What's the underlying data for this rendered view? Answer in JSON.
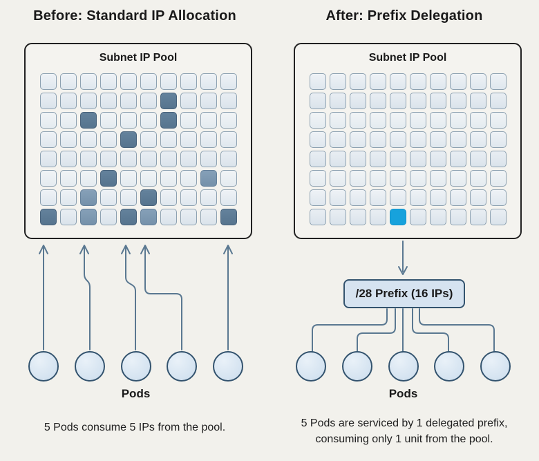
{
  "panels": [
    {
      "id": "before",
      "title": "Before: Standard IP Allocation",
      "pool_label": "Subnet IP Pool",
      "grid_rows": [
        "..........",
        "......d...",
        "..d...d...",
        "....d.....",
        "..........",
        "...d....m.",
        "..m..d....",
        "d.m.dm...d"
      ],
      "pod_count": 5,
      "pods_label": "Pods",
      "caption_lines": [
        "5 Pods consume 5 IPs from the pool."
      ]
    },
    {
      "id": "after",
      "title": "After: Prefix Delegation",
      "pool_label": "Subnet IP Pool",
      "grid_rows": [
        "..........",
        "..........",
        "..........",
        "..........",
        "..........",
        "..........",
        "..........",
        "....b....."
      ],
      "prefix_label": "/28 Prefix (16 IPs)",
      "pod_count": 5,
      "pods_label": "Pods",
      "caption_lines": [
        "5 Pods are serviced by 1 delegated prefix,",
        "consuming only 1 unit from the pool."
      ]
    }
  ],
  "grid_legend": {
    ".": "free-ip-unit",
    "d": "allocated-ip-unit",
    "m": "allocated-ip-unit-faded",
    "b": "delegated-prefix-unit"
  },
  "colors": {
    "background": "#f2f1ec",
    "box_border": "#212121",
    "cell_border": "#8da1b1",
    "cell_dark": "#5e7d98",
    "cell_mid": "#7e99b2",
    "cell_blue": "#17a2dc",
    "line": "#5a7891",
    "pod_fill": "#dbe7f3",
    "pod_border": "#33536e",
    "prefix_fill": "#d6e3f0"
  }
}
